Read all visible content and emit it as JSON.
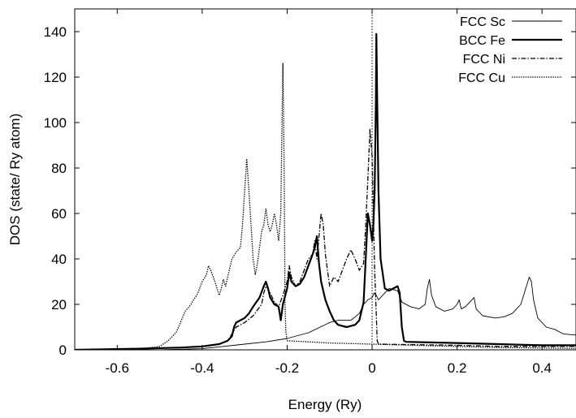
{
  "chart_data": {
    "type": "line",
    "title": "",
    "xlabel": "Energy  (Ry)",
    "ylabel": "DOS  (state/ Ry atom)",
    "xlim": [
      -0.7,
      0.48
    ],
    "ylim": [
      0,
      150
    ],
    "grid": false,
    "legend_position": "top-right",
    "x_ticks": [
      -0.6,
      -0.4,
      -0.2,
      0,
      0.2,
      0.4
    ],
    "x_tick_labels": [
      "-0.6",
      "-0.4",
      "-0.2",
      "0",
      "0.2",
      "0.4"
    ],
    "y_ticks": [
      0,
      20,
      40,
      60,
      80,
      100,
      120,
      140
    ],
    "y_tick_labels": [
      "0",
      "20",
      "40",
      "60",
      "80",
      "100",
      "120",
      "140"
    ],
    "fermi_level": 0,
    "series": [
      {
        "name": "FCC Sc",
        "style": "solid-thin",
        "color": "#000000",
        "points": [
          [
            -0.7,
            0
          ],
          [
            -0.5,
            0
          ],
          [
            -0.4,
            0.5
          ],
          [
            -0.3,
            2.5
          ],
          [
            -0.25,
            3.5
          ],
          [
            -0.2,
            5
          ],
          [
            -0.15,
            7.5
          ],
          [
            -0.1,
            12
          ],
          [
            -0.08,
            13
          ],
          [
            -0.05,
            13
          ],
          [
            -0.03,
            16
          ],
          [
            -0.02,
            20
          ],
          [
            -0.01,
            22
          ],
          [
            0,
            23
          ],
          [
            0.005,
            25
          ],
          [
            0.01,
            24
          ],
          [
            0.015,
            22
          ],
          [
            0.02,
            23
          ],
          [
            0.04,
            27
          ],
          [
            0.06,
            26
          ],
          [
            0.07,
            21
          ],
          [
            0.09,
            19
          ],
          [
            0.11,
            18
          ],
          [
            0.125,
            20
          ],
          [
            0.13,
            27
          ],
          [
            0.135,
            31
          ],
          [
            0.14,
            24
          ],
          [
            0.15,
            19
          ],
          [
            0.17,
            17
          ],
          [
            0.19,
            18
          ],
          [
            0.2,
            20
          ],
          [
            0.205,
            22
          ],
          [
            0.21,
            18
          ],
          [
            0.22,
            19
          ],
          [
            0.23,
            21
          ],
          [
            0.24,
            23
          ],
          [
            0.245,
            18
          ],
          [
            0.26,
            15
          ],
          [
            0.29,
            14
          ],
          [
            0.31,
            14.5
          ],
          [
            0.33,
            16
          ],
          [
            0.35,
            20
          ],
          [
            0.36,
            26
          ],
          [
            0.37,
            32
          ],
          [
            0.375,
            30
          ],
          [
            0.38,
            22
          ],
          [
            0.39,
            14
          ],
          [
            0.41,
            10
          ],
          [
            0.43,
            9
          ],
          [
            0.44,
            8
          ],
          [
            0.45,
            7
          ],
          [
            0.48,
            6.5
          ]
        ]
      },
      {
        "name": "BCC Fe",
        "style": "solid-thick",
        "color": "#000000",
        "points": [
          [
            -0.7,
            0
          ],
          [
            -0.55,
            0.5
          ],
          [
            -0.45,
            1
          ],
          [
            -0.4,
            1.5
          ],
          [
            -0.36,
            2.5
          ],
          [
            -0.34,
            4
          ],
          [
            -0.33,
            6
          ],
          [
            -0.325,
            10
          ],
          [
            -0.32,
            12
          ],
          [
            -0.31,
            13
          ],
          [
            -0.3,
            14
          ],
          [
            -0.29,
            16
          ],
          [
            -0.28,
            19
          ],
          [
            -0.265,
            23
          ],
          [
            -0.255,
            28
          ],
          [
            -0.25,
            30
          ],
          [
            -0.245,
            27
          ],
          [
            -0.24,
            23
          ],
          [
            -0.23,
            20
          ],
          [
            -0.22,
            19
          ],
          [
            -0.215,
            13
          ],
          [
            -0.21,
            20
          ],
          [
            -0.2,
            27
          ],
          [
            -0.195,
            34
          ],
          [
            -0.19,
            30
          ],
          [
            -0.18,
            28
          ],
          [
            -0.17,
            29
          ],
          [
            -0.16,
            32
          ],
          [
            -0.15,
            37
          ],
          [
            -0.14,
            42
          ],
          [
            -0.135,
            45
          ],
          [
            -0.13,
            50
          ],
          [
            -0.125,
            38
          ],
          [
            -0.12,
            30
          ],
          [
            -0.11,
            22
          ],
          [
            -0.1,
            17
          ],
          [
            -0.09,
            13
          ],
          [
            -0.08,
            11
          ],
          [
            -0.06,
            10
          ],
          [
            -0.04,
            11
          ],
          [
            -0.03,
            13
          ],
          [
            -0.02,
            21
          ],
          [
            -0.015,
            40
          ],
          [
            -0.01,
            60
          ],
          [
            -0.005,
            55
          ],
          [
            0,
            48
          ],
          [
            0.003,
            55
          ],
          [
            0.006,
            70
          ],
          [
            0.009,
            110
          ],
          [
            0.01,
            139
          ],
          [
            0.012,
            110
          ],
          [
            0.015,
            70
          ],
          [
            0.02,
            40
          ],
          [
            0.03,
            27
          ],
          [
            0.04,
            26
          ],
          [
            0.05,
            27
          ],
          [
            0.06,
            28
          ],
          [
            0.065,
            25
          ],
          [
            0.07,
            10
          ],
          [
            0.075,
            4
          ],
          [
            0.08,
            3.5
          ],
          [
            0.2,
            3
          ],
          [
            0.3,
            2.5
          ],
          [
            0.4,
            2
          ],
          [
            0.48,
            2
          ]
        ]
      },
      {
        "name": "FCC Ni",
        "style": "dash-dot",
        "color": "#000000",
        "points": [
          [
            -0.7,
            0
          ],
          [
            -0.55,
            0.5
          ],
          [
            -0.45,
            1
          ],
          [
            -0.4,
            1.5
          ],
          [
            -0.36,
            2.5
          ],
          [
            -0.34,
            4
          ],
          [
            -0.33,
            7
          ],
          [
            -0.32,
            10
          ],
          [
            -0.3,
            12
          ],
          [
            -0.28,
            15
          ],
          [
            -0.26,
            20
          ],
          [
            -0.255,
            25
          ],
          [
            -0.25,
            28
          ],
          [
            -0.245,
            27
          ],
          [
            -0.24,
            25
          ],
          [
            -0.23,
            21
          ],
          [
            -0.22,
            19
          ],
          [
            -0.21,
            24
          ],
          [
            -0.2,
            30
          ],
          [
            -0.195,
            37
          ],
          [
            -0.19,
            32
          ],
          [
            -0.18,
            28
          ],
          [
            -0.17,
            30
          ],
          [
            -0.16,
            35
          ],
          [
            -0.15,
            40
          ],
          [
            -0.14,
            42
          ],
          [
            -0.135,
            48
          ],
          [
            -0.13,
            40
          ],
          [
            -0.125,
            50
          ],
          [
            -0.12,
            60
          ],
          [
            -0.115,
            55
          ],
          [
            -0.11,
            42
          ],
          [
            -0.1,
            28
          ],
          [
            -0.09,
            32
          ],
          [
            -0.08,
            30
          ],
          [
            -0.07,
            35
          ],
          [
            -0.06,
            40
          ],
          [
            -0.05,
            44
          ],
          [
            -0.04,
            40
          ],
          [
            -0.03,
            35
          ],
          [
            -0.02,
            38
          ],
          [
            -0.015,
            55
          ],
          [
            -0.01,
            75
          ],
          [
            -0.005,
            97
          ],
          [
            0,
            85
          ],
          [
            0.003,
            60
          ],
          [
            0.006,
            35
          ],
          [
            0.01,
            15
          ],
          [
            0.012,
            4
          ],
          [
            0.015,
            2.5
          ],
          [
            0.2,
            2
          ],
          [
            0.3,
            1.5
          ],
          [
            0.4,
            1.5
          ],
          [
            0.48,
            1.5
          ]
        ]
      },
      {
        "name": "FCC Cu",
        "style": "dotted",
        "color": "#000000",
        "points": [
          [
            -0.7,
            0
          ],
          [
            -0.55,
            0.3
          ],
          [
            -0.5,
            1.5
          ],
          [
            -0.48,
            4
          ],
          [
            -0.46,
            8
          ],
          [
            -0.44,
            17
          ],
          [
            -0.43,
            19
          ],
          [
            -0.42,
            22
          ],
          [
            -0.41,
            25
          ],
          [
            -0.4,
            30
          ],
          [
            -0.39,
            33
          ],
          [
            -0.385,
            37
          ],
          [
            -0.38,
            35
          ],
          [
            -0.37,
            30
          ],
          [
            -0.36,
            24
          ],
          [
            -0.355,
            27
          ],
          [
            -0.35,
            31
          ],
          [
            -0.345,
            28
          ],
          [
            -0.34,
            32
          ],
          [
            -0.33,
            40
          ],
          [
            -0.32,
            43
          ],
          [
            -0.31,
            45
          ],
          [
            -0.305,
            55
          ],
          [
            -0.3,
            70
          ],
          [
            -0.295,
            84
          ],
          [
            -0.29,
            70
          ],
          [
            -0.285,
            55
          ],
          [
            -0.28,
            40
          ],
          [
            -0.275,
            33
          ],
          [
            -0.27,
            38
          ],
          [
            -0.265,
            45
          ],
          [
            -0.26,
            52
          ],
          [
            -0.255,
            55
          ],
          [
            -0.25,
            62
          ],
          [
            -0.245,
            55
          ],
          [
            -0.24,
            52
          ],
          [
            -0.235,
            55
          ],
          [
            -0.23,
            60
          ],
          [
            -0.225,
            55
          ],
          [
            -0.22,
            48
          ],
          [
            -0.215,
            60
          ],
          [
            -0.21,
            126
          ],
          [
            -0.207,
            80
          ],
          [
            -0.205,
            20
          ],
          [
            -0.203,
            8
          ],
          [
            -0.2,
            4
          ],
          [
            -0.1,
            3
          ],
          [
            0,
            2.5
          ],
          [
            0.1,
            2
          ],
          [
            0.2,
            1.5
          ],
          [
            0.3,
            1
          ],
          [
            0.4,
            0.8
          ],
          [
            0.48,
            0.6
          ]
        ]
      }
    ]
  }
}
